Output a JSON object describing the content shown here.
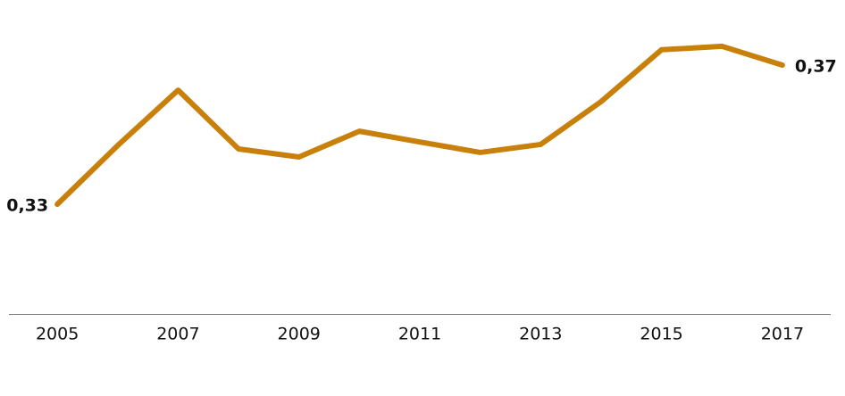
{
  "chart_data": {
    "type": "line",
    "x": [
      2005,
      2006,
      2007,
      2008,
      2009,
      2010,
      2011,
      2012,
      2013,
      2014,
      2015,
      2016,
      2017
    ],
    "series": [
      {
        "color": "#c8800a",
        "values": [
          0.33,
          0.3469,
          0.3628,
          0.3459,
          0.3436,
          0.351,
          0.3479,
          0.3449,
          0.3472,
          0.3595,
          0.3744,
          0.3754,
          0.37
        ],
        "value_labels": [
          "0,33",
          null,
          null,
          null,
          null,
          null,
          null,
          null,
          null,
          null,
          null,
          null,
          "0,37"
        ]
      }
    ],
    "xlim": [
      2004.2,
      2017.8
    ],
    "xticks": [
      2005,
      2007,
      2009,
      2011,
      2013,
      2015,
      2017
    ],
    "ylim": [
      0.2985,
      0.3887
    ],
    "grid": false
  }
}
